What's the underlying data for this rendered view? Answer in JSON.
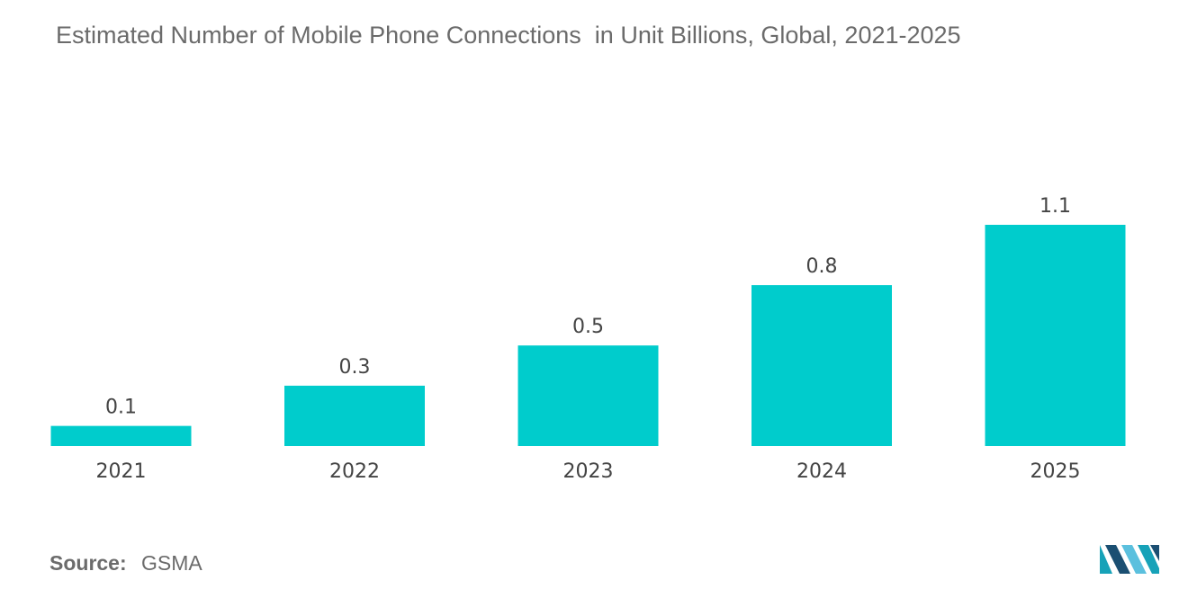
{
  "title": "Estimated Number of Mobile Phone Connections  in Unit Billions, Global, 2021-2025",
  "source": {
    "label": "Source:",
    "value": "GSMA"
  },
  "logo": {
    "icon": "mordor-intelligence-logo-icon",
    "colors": [
      "#1b4f72",
      "#17a2b8",
      "#5bc0de"
    ]
  },
  "chart_data": {
    "type": "bar",
    "title": "Estimated Number of Mobile Phone Connections  in Unit Billions, Global, 2021-2025",
    "categories": [
      "2021",
      "2022",
      "2023",
      "2024",
      "2025"
    ],
    "values": [
      0.1,
      0.3,
      0.5,
      0.8,
      1.1
    ],
    "value_labels": [
      "0.1",
      "0.3",
      "0.5",
      "0.8",
      "1.1"
    ],
    "xlabel": "",
    "ylabel": "",
    "ylim": [
      0,
      1.1
    ],
    "grid": false,
    "legend": "none",
    "bar_color": "#00cccc"
  }
}
